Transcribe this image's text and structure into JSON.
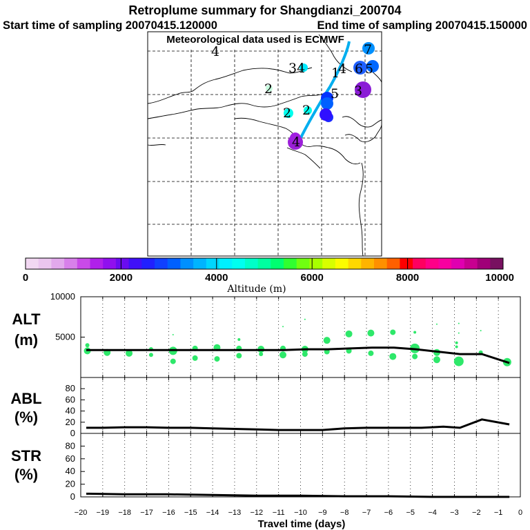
{
  "chart_data": {
    "type": "multi-panel",
    "title": "Retroplume summary for Shangdianzi_200704",
    "subtitle_start": "Start time of sampling 20070415.120000",
    "subtitle_end": "End time of sampling 20070415.150000",
    "subtitle_met": "Meteorological data used is ECMWF",
    "map": {
      "description_labels": [
        "1",
        "2",
        "3",
        "4",
        "5",
        "6",
        "7"
      ],
      "track_color": "#00aeef",
      "markers": [
        {
          "label": "4",
          "altitude": 2100,
          "color": "#9b1fd8"
        },
        {
          "label": "2",
          "altitude": 3300,
          "color": "#00ffee"
        },
        {
          "label": "2",
          "altitude": 3200,
          "color": "#00ffee"
        },
        {
          "label": "2",
          "altitude": 4200,
          "color": "#c8ffe0"
        },
        {
          "label": "1",
          "altitude": 3600,
          "color": "#0033ff"
        },
        {
          "label": "3",
          "altitude": 1800,
          "color": "#8a1cd6"
        },
        {
          "label": "6",
          "altitude": 2700,
          "color": "#0060ff"
        },
        {
          "label": "5",
          "altitude": 2600,
          "color": "#0068ff"
        },
        {
          "label": "7",
          "altitude": 2800,
          "color": "#0090ff"
        },
        {
          "label": "34",
          "altitude": 3400,
          "color": "#00eaff"
        },
        {
          "label": "1",
          "altitude": 3000,
          "color": "#1a2aff"
        },
        {
          "label": "6",
          "altitude": 2000,
          "color": "#3010ff"
        },
        {
          "label": "4",
          "altitude": 3300,
          "color": "#2060ff"
        },
        {
          "label": "4",
          "altitude": 2700,
          "color": "#a020e0"
        }
      ]
    },
    "colorbar": {
      "label": "Altitude (m)",
      "range": [
        0,
        10000
      ],
      "ticks": [
        0,
        2000,
        4000,
        6000,
        8000,
        10000
      ],
      "colors": [
        "#f2d8f2",
        "#ebc6ef",
        "#e2a9ec",
        "#d880ea",
        "#c94ae8",
        "#b020ea",
        "#9010ee",
        "#6a0cf0",
        "#4010f8",
        "#2020ff",
        "#1040ff",
        "#0060ff",
        "#0090ff",
        "#00b4ff",
        "#00d6ff",
        "#00f0ff",
        "#00fff0",
        "#00ffc8",
        "#00ffa0",
        "#00ff70",
        "#30ff30",
        "#70ff10",
        "#a8ff00",
        "#d8ff00",
        "#fcfc00",
        "#ffd800",
        "#ffb400",
        "#ff9000",
        "#ff6000",
        "#ff0000",
        "#ff0060",
        "#ff0088",
        "#f800a0",
        "#e000b0",
        "#c80090",
        "#a00078",
        "#781060"
      ]
    },
    "panels": [
      {
        "name": "ALT",
        "ylabel_line1": "ALT",
        "ylabel_line2": "(m)",
        "yticks": [
          5000,
          10000
        ],
        "ylim": [
          0,
          10000
        ],
        "line": {
          "x": [
            -19.75,
            -18.75,
            -17.75,
            -16.75,
            -15.75,
            -14.75,
            -13.75,
            -12.75,
            -11.75,
            -10.75,
            -9.75,
            -8.75,
            -7.75,
            -6.75,
            -5.75,
            -4.75,
            -3.75,
            -2.75,
            -1.75,
            -0.5
          ],
          "y": [
            3400,
            3400,
            3400,
            3400,
            3400,
            3400,
            3400,
            3400,
            3400,
            3400,
            3500,
            3500,
            3600,
            3700,
            3700,
            3500,
            3200,
            2900,
            2900,
            1800
          ]
        },
        "dots": [
          {
            "x": -19.7,
            "y": 3300,
            "s": 5
          },
          {
            "x": -19.7,
            "y": 4000,
            "s": 3
          },
          {
            "x": -18.8,
            "y": 3100,
            "s": 5
          },
          {
            "x": -17.8,
            "y": 3000,
            "s": 5
          },
          {
            "x": -16.8,
            "y": 3500,
            "s": 3
          },
          {
            "x": -16.8,
            "y": 2800,
            "s": 3
          },
          {
            "x": -15.8,
            "y": 3300,
            "s": 6
          },
          {
            "x": -15.8,
            "y": 2000,
            "s": 4
          },
          {
            "x": -15.8,
            "y": 5300,
            "s": 1
          },
          {
            "x": -14.8,
            "y": 3600,
            "s": 4
          },
          {
            "x": -14.8,
            "y": 2400,
            "s": 4
          },
          {
            "x": -13.8,
            "y": 3700,
            "s": 5
          },
          {
            "x": -13.8,
            "y": 2300,
            "s": 4
          },
          {
            "x": -12.8,
            "y": 3600,
            "s": 4
          },
          {
            "x": -12.8,
            "y": 2700,
            "s": 4
          },
          {
            "x": -12.8,
            "y": 4700,
            "s": 2
          },
          {
            "x": -11.8,
            "y": 3500,
            "s": 5
          },
          {
            "x": -11.8,
            "y": 2900,
            "s": 3
          },
          {
            "x": -10.8,
            "y": 3600,
            "s": 4
          },
          {
            "x": -10.8,
            "y": 2800,
            "s": 5
          },
          {
            "x": -10.8,
            "y": 6300,
            "s": 1
          },
          {
            "x": -9.8,
            "y": 3500,
            "s": 5
          },
          {
            "x": -9.8,
            "y": 2900,
            "s": 4
          },
          {
            "x": -9.8,
            "y": 7200,
            "s": 1
          },
          {
            "x": -8.8,
            "y": 4600,
            "s": 5
          },
          {
            "x": -8.8,
            "y": 3200,
            "s": 4
          },
          {
            "x": -7.8,
            "y": 5400,
            "s": 5
          },
          {
            "x": -7.8,
            "y": 3300,
            "s": 4
          },
          {
            "x": -6.8,
            "y": 5500,
            "s": 5
          },
          {
            "x": -6.8,
            "y": 3000,
            "s": 4
          },
          {
            "x": -5.8,
            "y": 5600,
            "s": 4
          },
          {
            "x": -5.8,
            "y": 2600,
            "s": 5
          },
          {
            "x": -4.8,
            "y": 5600,
            "s": 2
          },
          {
            "x": -4.8,
            "y": 3600,
            "s": 7
          },
          {
            "x": -4.8,
            "y": 2600,
            "s": 4
          },
          {
            "x": -3.8,
            "y": 6600,
            "s": 1
          },
          {
            "x": -3.8,
            "y": 3100,
            "s": 5
          },
          {
            "x": -3.8,
            "y": 2200,
            "s": 5
          },
          {
            "x": -2.8,
            "y": 6700,
            "s": 1
          },
          {
            "x": -2.8,
            "y": 2000,
            "s": 7
          },
          {
            "x": -2.8,
            "y": 5500,
            "s": 1
          },
          {
            "x": -1.8,
            "y": 5800,
            "s": 1
          },
          {
            "x": -1.8,
            "y": 3100,
            "s": 3
          },
          {
            "x": -0.6,
            "y": 1900,
            "s": 6
          },
          {
            "x": -2.9,
            "y": 4300,
            "s": 2
          },
          {
            "x": -2.9,
            "y": 3800,
            "s": 2
          }
        ]
      },
      {
        "name": "ABL",
        "ylabel_line1": "ABL",
        "ylabel_line2": "(%)",
        "yticks": [
          0,
          20,
          40,
          60,
          80
        ],
        "ylim": [
          0,
          100
        ],
        "line": {
          "x": [
            -19.75,
            -19,
            -18,
            -17,
            -16,
            -15,
            -14,
            -13,
            -12,
            -11,
            -10,
            -9,
            -8,
            -7,
            -6,
            -5,
            -4.5,
            -3.5,
            -2.75,
            -1.75,
            -0.5
          ],
          "y": [
            10,
            10,
            11,
            11,
            10,
            10,
            9,
            8,
            7,
            6,
            6,
            6,
            9,
            10,
            10,
            10,
            10,
            12,
            10,
            25,
            16
          ]
        }
      },
      {
        "name": "STR",
        "ylabel_line1": "STR",
        "ylabel_line2": "(%)",
        "yticks": [
          0,
          20,
          40,
          60,
          80
        ],
        "ylim": [
          0,
          100
        ],
        "line": {
          "x": [
            -19.75,
            -18,
            -16,
            -14,
            -12,
            -10,
            -8,
            -6,
            -4,
            -2,
            -0.5
          ],
          "y": [
            5,
            4,
            4,
            3,
            2,
            2,
            1,
            1,
            0,
            0,
            0
          ]
        }
      }
    ],
    "xlabel": "Travel time (days)",
    "xlim": [
      -20,
      0
    ],
    "xticks": [
      -20,
      -19,
      -18,
      -17,
      -16,
      -15,
      -14,
      -13,
      -12,
      -11,
      -10,
      -9,
      -8,
      -7,
      -6,
      -5,
      -4,
      -3,
      -2,
      -1,
      0
    ]
  }
}
